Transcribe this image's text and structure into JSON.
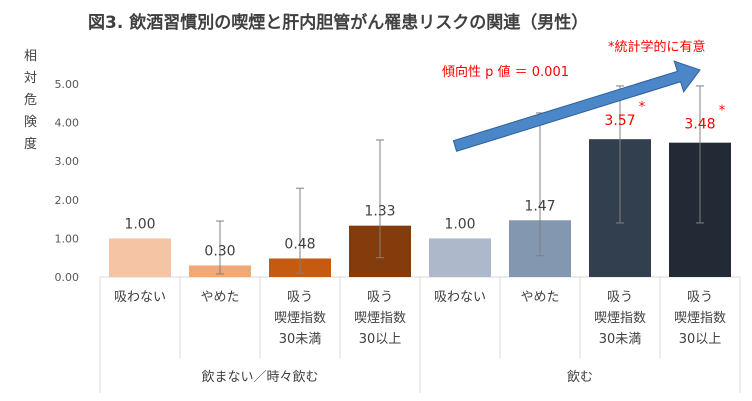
{
  "chart_data": {
    "type": "bar",
    "title": "図3. 飲酒習慣別の喫煙と肝内胆管がん罹患リスクの関連（男性）",
    "ylabel": "相対危険度",
    "ylim": [
      0,
      5
    ],
    "yticks": [
      "0.00",
      "1.00",
      "2.00",
      "3.00",
      "4.00",
      "5.00"
    ],
    "grid": false,
    "groups": [
      {
        "label": "飲まない／時々飲む",
        "size": 4
      },
      {
        "label": "飲む",
        "size": 4
      }
    ],
    "categories": [
      [
        "吸わない"
      ],
      [
        "やめた"
      ],
      [
        "吸う",
        "喫煙指数",
        "30未満"
      ],
      [
        "吸う",
        "喫煙指数",
        "30以上"
      ],
      [
        "吸わない"
      ],
      [
        "やめた"
      ],
      [
        "吸う",
        "喫煙指数",
        "30未満"
      ],
      [
        "吸う",
        "喫煙指数",
        "30以上"
      ]
    ],
    "values": [
      1.0,
      0.3,
      0.48,
      1.33,
      1.0,
      1.47,
      3.57,
      3.48
    ],
    "labels": [
      "1.00",
      "0.30",
      "0.48",
      "1.33",
      "1.00",
      "1.47",
      "3.57",
      "3.48"
    ],
    "ci_low": [
      1.0,
      0.08,
      0.1,
      0.5,
      1.0,
      0.55,
      1.4,
      1.4
    ],
    "ci_high": [
      1.0,
      1.45,
      2.3,
      3.55,
      1.0,
      4.25,
      4.95,
      4.95
    ],
    "significant": [
      false,
      false,
      false,
      false,
      false,
      false,
      true,
      true
    ],
    "colors": [
      "#f4c4a4",
      "#f0a978",
      "#c55a11",
      "#843c0c",
      "#adb9ca",
      "#8497b0",
      "#323f4f",
      "#222a35"
    ],
    "label_colors": [
      "#404040",
      "#404040",
      "#404040",
      "#404040",
      "#404040",
      "#404040",
      "#ff0000",
      "#ff0000"
    ],
    "significance_mark": "*",
    "significance_note": "*統計学的に有意",
    "trend_text": "傾向性 p 値 ＝ 0.001",
    "trend_color": "#4a86c8",
    "annotation_color": "#ff0000"
  }
}
